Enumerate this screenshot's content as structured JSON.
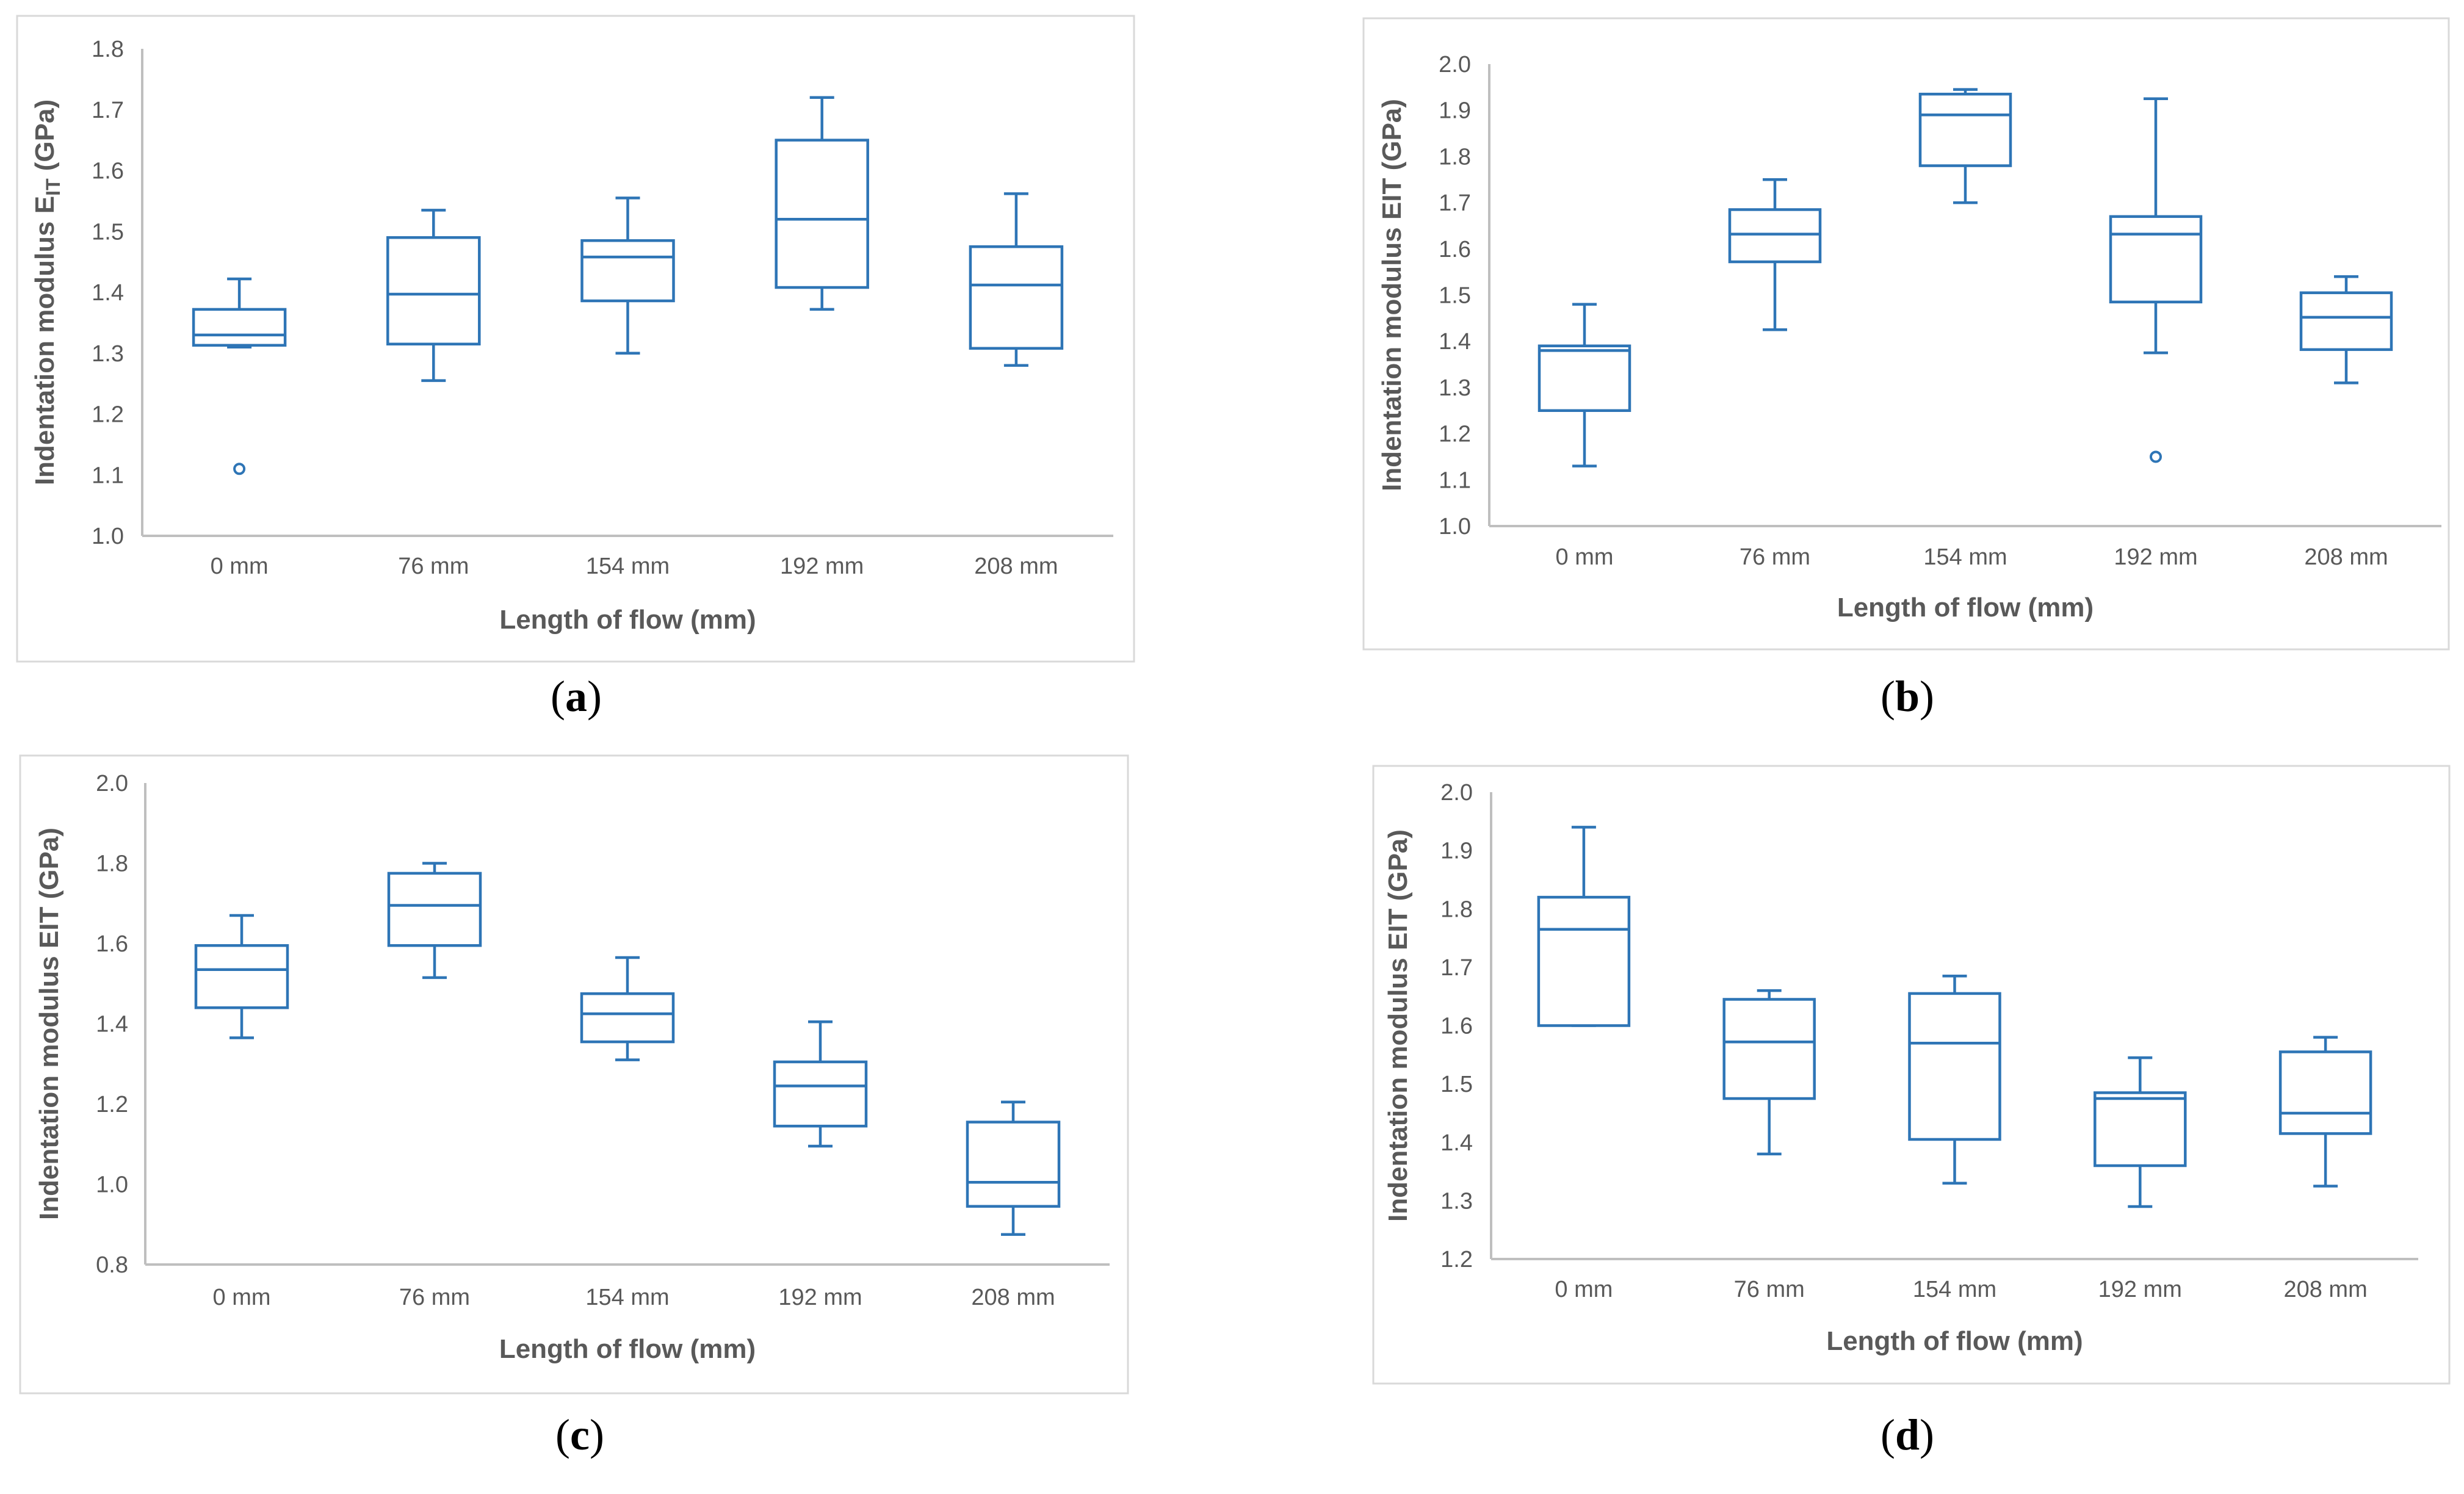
{
  "chart_data": [
    {
      "type": "box",
      "panel": "a",
      "caption_letter": "a",
      "ylabel_main": "Indentation modulus E",
      "ylabel_sub": "IT",
      "ylabel_tail": " (GPa)",
      "xlabel": "Length of flow (mm)",
      "ylim": [
        1.0,
        1.8
      ],
      "yticks": [
        "1.0",
        "1.1",
        "1.2",
        "1.3",
        "1.4",
        "1.5",
        "1.6",
        "1.7",
        "1.8"
      ],
      "categories": [
        "0 mm",
        "76 mm",
        "154 mm",
        "192 mm",
        "208 mm"
      ],
      "boxes": [
        {
          "min": 1.31,
          "q1": 1.313,
          "median": 1.33,
          "q3": 1.372,
          "max": 1.422,
          "outliers": [
            1.11
          ]
        },
        {
          "min": 1.255,
          "q1": 1.315,
          "median": 1.397,
          "q3": 1.49,
          "max": 1.535,
          "outliers": []
        },
        {
          "min": 1.3,
          "q1": 1.386,
          "median": 1.458,
          "q3": 1.485,
          "max": 1.555,
          "outliers": []
        },
        {
          "min": 1.372,
          "q1": 1.408,
          "median": 1.52,
          "q3": 1.65,
          "max": 1.72,
          "outliers": []
        },
        {
          "min": 1.28,
          "q1": 1.308,
          "median": 1.412,
          "q3": 1.475,
          "max": 1.562,
          "outliers": []
        }
      ]
    },
    {
      "type": "box",
      "panel": "b",
      "caption_letter": "b",
      "ylabel_main": "Indentation modulus EIT",
      "ylabel_sub": "",
      "ylabel_tail": " (GPa)",
      "xlabel": "Length of flow (mm)",
      "ylim": [
        1.0,
        2.0
      ],
      "yticks": [
        "1.0",
        "1.1",
        "1.2",
        "1.3",
        "1.4",
        "1.5",
        "1.6",
        "1.7",
        "1.8",
        "1.9",
        "2.0"
      ],
      "categories": [
        "0 mm",
        "76 mm",
        "154 mm",
        "192 mm",
        "208 mm"
      ],
      "boxes": [
        {
          "min": 1.13,
          "q1": 1.25,
          "median": 1.38,
          "q3": 1.39,
          "max": 1.48,
          "outliers": []
        },
        {
          "min": 1.425,
          "q1": 1.572,
          "median": 1.632,
          "q3": 1.685,
          "max": 1.75,
          "outliers": []
        },
        {
          "min": 1.7,
          "q1": 1.78,
          "median": 1.89,
          "q3": 1.935,
          "max": 1.945,
          "outliers": []
        },
        {
          "min": 1.375,
          "q1": 1.485,
          "median": 1.632,
          "q3": 1.67,
          "max": 1.925,
          "outliers": [
            1.15
          ]
        },
        {
          "min": 1.31,
          "q1": 1.382,
          "median": 1.452,
          "q3": 1.505,
          "max": 1.54,
          "outliers": []
        }
      ]
    },
    {
      "type": "box",
      "panel": "c",
      "caption_letter": "c",
      "ylabel_main": "Indentation modulus EIT",
      "ylabel_sub": "",
      "ylabel_tail": " (GPa)",
      "xlabel": "Length of flow (mm)",
      "ylim": [
        0.8,
        2.0
      ],
      "yticks": [
        "0.8",
        "1.0",
        "1.2",
        "1.4",
        "1.6",
        "1.8",
        "2.0"
      ],
      "categories": [
        "0 mm",
        "76 mm",
        "154 mm",
        "192 mm",
        "208 mm"
      ],
      "boxes": [
        {
          "min": 1.365,
          "q1": 1.44,
          "median": 1.535,
          "q3": 1.595,
          "max": 1.67,
          "outliers": []
        },
        {
          "min": 1.515,
          "q1": 1.595,
          "median": 1.695,
          "q3": 1.775,
          "max": 1.8,
          "outliers": []
        },
        {
          "min": 1.31,
          "q1": 1.355,
          "median": 1.425,
          "q3": 1.475,
          "max": 1.565,
          "outliers": []
        },
        {
          "min": 1.095,
          "q1": 1.145,
          "median": 1.245,
          "q3": 1.305,
          "max": 1.405,
          "outliers": []
        },
        {
          "min": 0.875,
          "q1": 0.945,
          "median": 1.005,
          "q3": 1.155,
          "max": 1.205,
          "outliers": []
        }
      ]
    },
    {
      "type": "box",
      "panel": "d",
      "caption_letter": "d",
      "ylabel_main": "Indentation modulus EIT",
      "ylabel_sub": "",
      "ylabel_tail": " (GPa)",
      "xlabel": "Length of flow (mm)",
      "ylim": [
        1.2,
        2.0
      ],
      "yticks": [
        "1.2",
        "1.3",
        "1.4",
        "1.5",
        "1.6",
        "1.7",
        "1.8",
        "1.9",
        "2.0"
      ],
      "categories": [
        "0 mm",
        "76 mm",
        "154 mm",
        "192 mm",
        "208 mm"
      ],
      "boxes": [
        {
          "min": 1.6,
          "q1": 1.6,
          "median": 1.765,
          "q3": 1.82,
          "max": 1.94,
          "outliers": []
        },
        {
          "min": 1.38,
          "q1": 1.475,
          "median": 1.572,
          "q3": 1.645,
          "max": 1.66,
          "outliers": []
        },
        {
          "min": 1.33,
          "q1": 1.405,
          "median": 1.57,
          "q3": 1.655,
          "max": 1.685,
          "outliers": []
        },
        {
          "min": 1.29,
          "q1": 1.36,
          "median": 1.475,
          "q3": 1.485,
          "max": 1.545,
          "outliers": []
        },
        {
          "min": 1.325,
          "q1": 1.415,
          "median": 1.45,
          "q3": 1.555,
          "max": 1.58,
          "outliers": []
        }
      ]
    }
  ]
}
